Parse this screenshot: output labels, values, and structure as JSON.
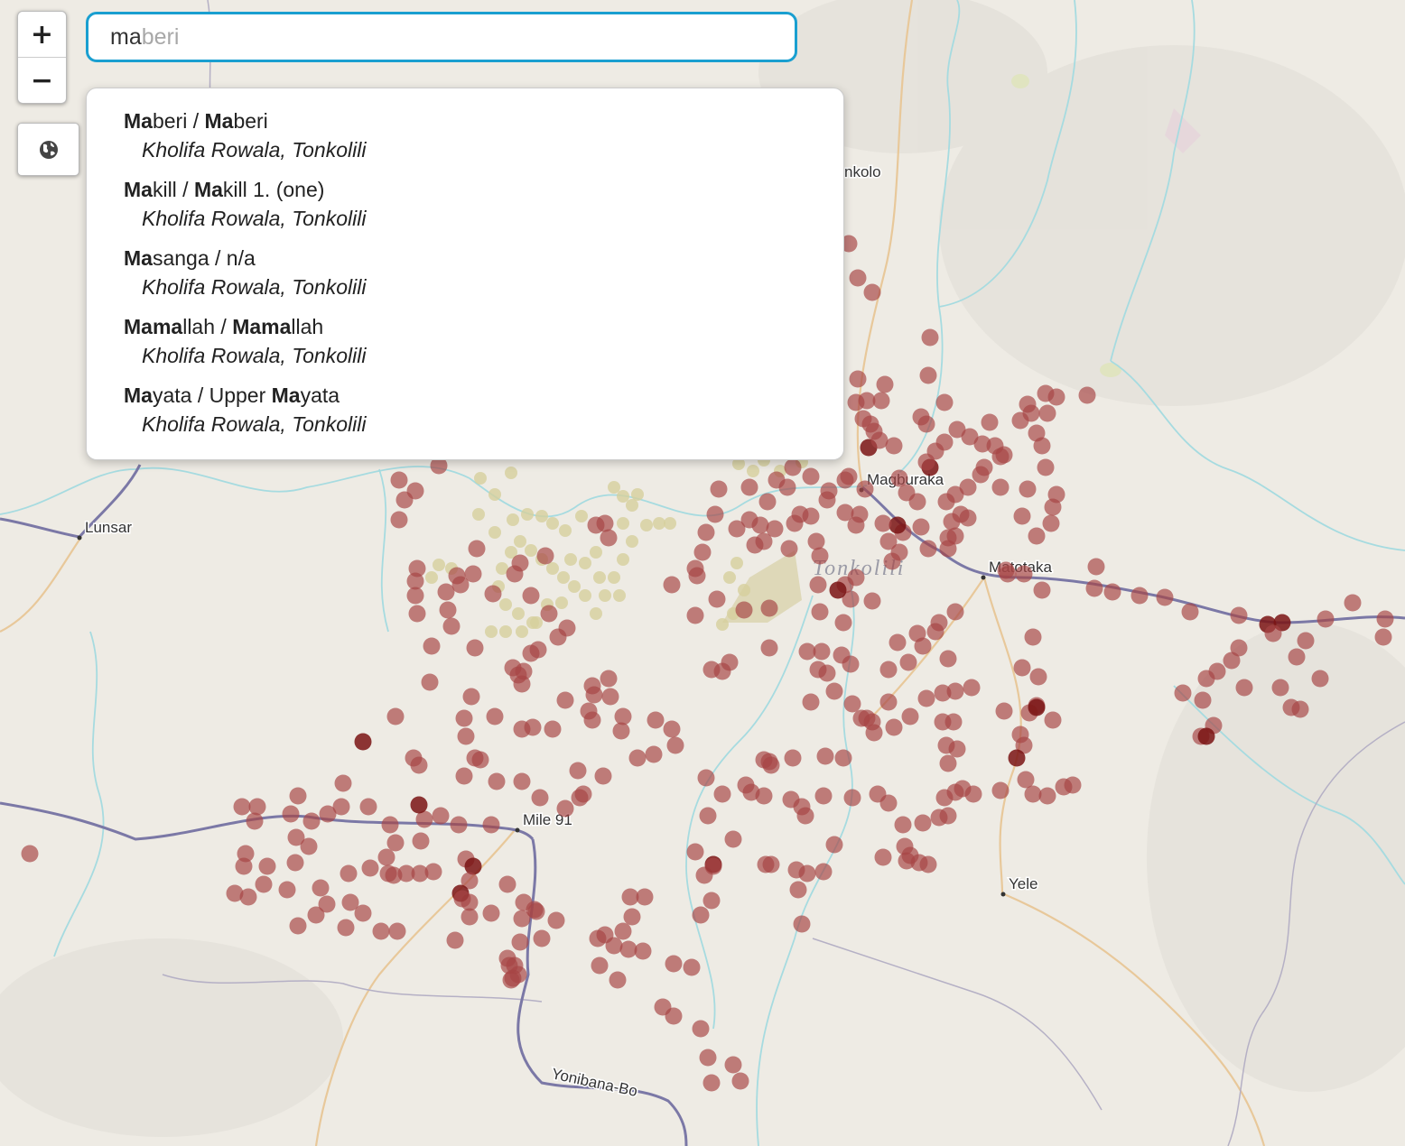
{
  "search": {
    "typed": "ma",
    "hint": "beri"
  },
  "zoom": {
    "in_label": "+",
    "out_label": "−"
  },
  "results": [
    {
      "title": [
        [
          "Ma",
          true
        ],
        [
          "beri / ",
          false
        ],
        [
          "Ma",
          true
        ],
        [
          "beri",
          false
        ]
      ],
      "subtitle": "Kholifa Rowala, Tonkolili"
    },
    {
      "title": [
        [
          "Ma",
          true
        ],
        [
          "kill / ",
          false
        ],
        [
          "Ma",
          true
        ],
        [
          "kill 1. (one)",
          false
        ]
      ],
      "subtitle": "Kholifa Rowala, Tonkolili"
    },
    {
      "title": [
        [
          "Ma",
          true
        ],
        [
          "sanga / n/a",
          false
        ]
      ],
      "subtitle": "Kholifa Rowala, Tonkolili"
    },
    {
      "title": [
        [
          "Mama",
          true
        ],
        [
          "llah / ",
          false
        ],
        [
          "Mama",
          true
        ],
        [
          "llah",
          false
        ]
      ],
      "subtitle": "Kholifa Rowala, Tonkolili"
    },
    {
      "title": [
        [
          "Ma",
          true
        ],
        [
          "yata / Upper ",
          false
        ],
        [
          "Ma",
          true
        ],
        [
          "yata",
          false
        ]
      ],
      "subtitle": "Kholifa Rowala, Tonkolili"
    }
  ],
  "map": {
    "places": {
      "lunsar": "Lunsar",
      "magburaka": "Magburaka",
      "matotaka": "Matotaka",
      "mile91": "Mile 91",
      "yele": "Yele",
      "tonkolo": "nkolo",
      "yonibana": "Yonibana-Bo"
    },
    "region": "Tonkolili",
    "colors": {
      "marker": "#a64545",
      "marker_dark": "#7a1414",
      "search_border": "#1a9fd0",
      "water": "#a6dbe0",
      "main_road": "#7b78a6",
      "minor_road": "#e8c89a"
    }
  }
}
